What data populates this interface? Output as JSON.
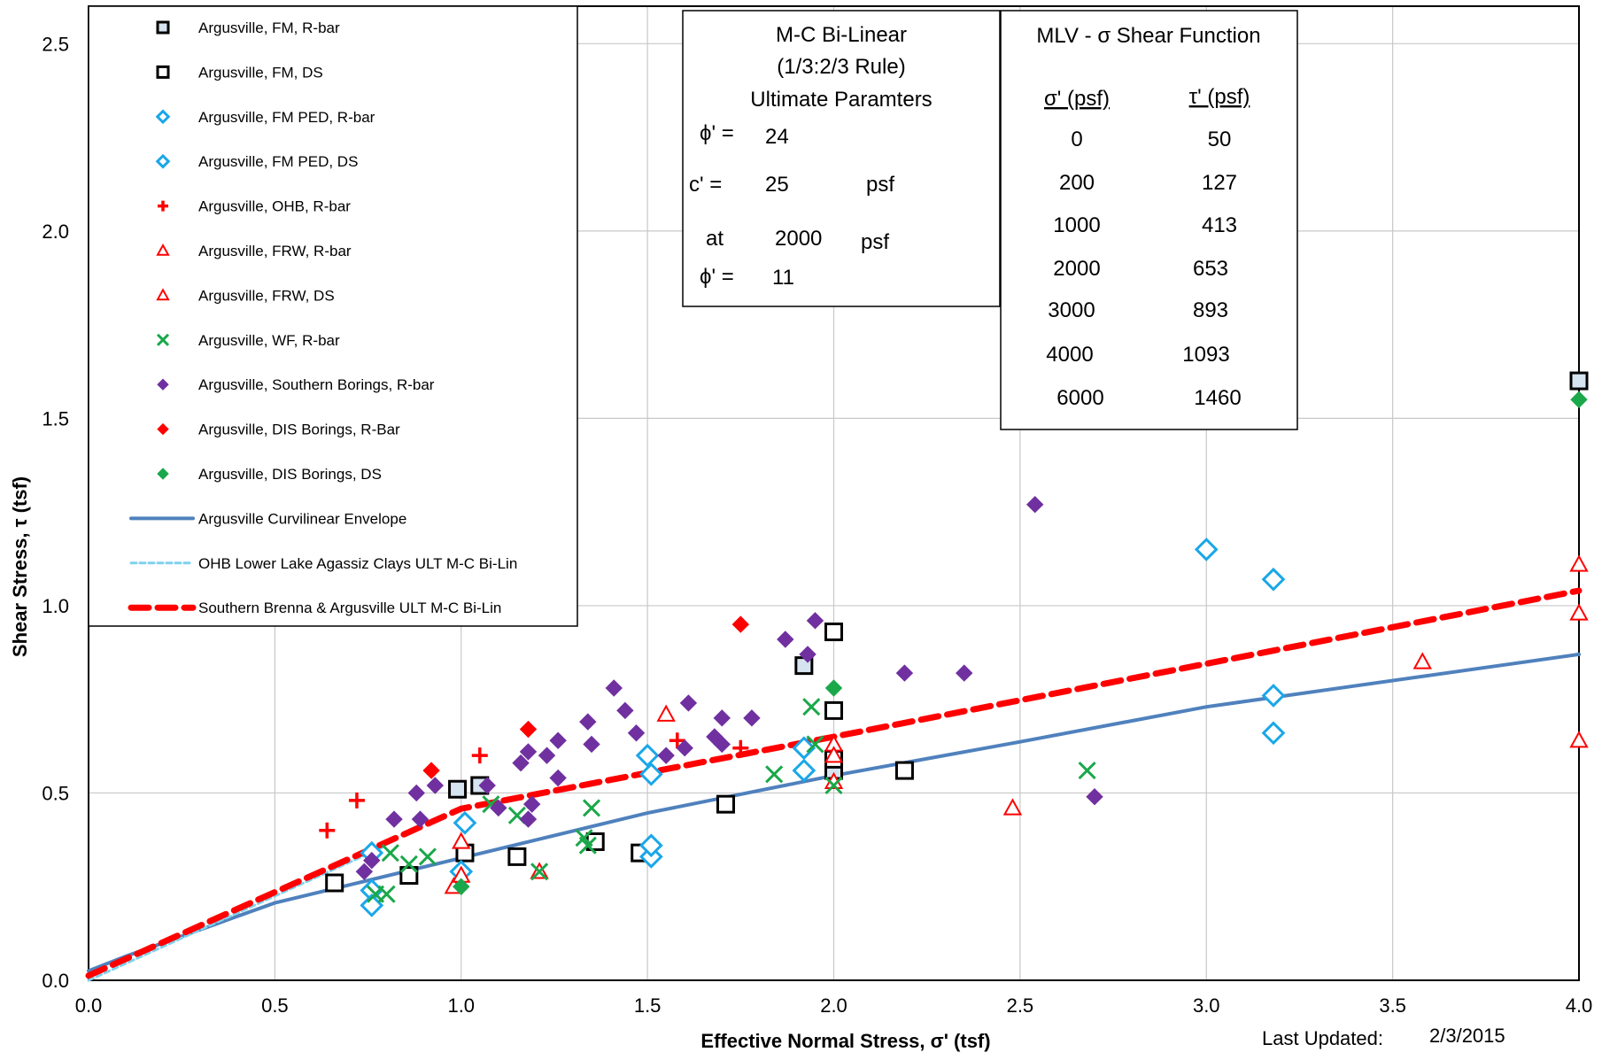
{
  "chart_data": {
    "type": "scatter",
    "title": "",
    "xlabel": "Effective Normal Stress, σ' (tsf)",
    "ylabel": "Shear Stress, τ (tsf)",
    "xlim": [
      0,
      4
    ],
    "ylim": [
      0,
      2.6
    ],
    "xticks": [
      "0.0",
      "0.5",
      "1.0",
      "1.5",
      "2.0",
      "2.5",
      "3.0",
      "3.5",
      "4.0"
    ],
    "yticks": [
      "0.0",
      "0.5",
      "1.0",
      "1.5",
      "2.0",
      "2.5"
    ],
    "grid": true,
    "legend_placement": "top-left",
    "colors": {
      "black": "#000000",
      "cyan": "#1aa7e8",
      "red": "#ff0000",
      "green": "#1aa84a",
      "purple": "#7030a0",
      "blue_line": "#4f81bd",
      "light_blue_line": "#7fd2ee",
      "red_dash": "#ff0000"
    },
    "series": [
      {
        "name": "Argusville, FM, R-bar",
        "marker": "square-light",
        "color": "#000000",
        "points": [
          [
            0.99,
            0.51
          ],
          [
            1.05,
            0.52
          ],
          [
            1.92,
            0.84
          ],
          [
            2.0,
            0.56
          ],
          [
            4.0,
            1.6
          ]
        ]
      },
      {
        "name": "Argusville, FM, DS",
        "marker": "square",
        "color": "#000000",
        "points": [
          [
            0.66,
            0.26
          ],
          [
            0.86,
            0.28
          ],
          [
            1.01,
            0.34
          ],
          [
            1.15,
            0.33
          ],
          [
            1.36,
            0.37
          ],
          [
            1.48,
            0.34
          ],
          [
            1.71,
            0.47
          ],
          [
            2.0,
            0.93
          ],
          [
            2.0,
            0.72
          ],
          [
            2.0,
            0.59
          ],
          [
            2.19,
            0.56
          ]
        ]
      },
      {
        "name": "Argusville, FM PED, R-bar",
        "marker": "diamond",
        "color": "#1aa7e8",
        "points": [
          [
            0.76,
            0.24
          ],
          [
            0.76,
            0.2
          ],
          [
            1.0,
            0.29
          ],
          [
            1.51,
            0.55
          ],
          [
            1.5,
            0.6
          ],
          [
            1.92,
            0.62
          ],
          [
            1.92,
            0.56
          ],
          [
            3.0,
            1.15
          ],
          [
            3.18,
            1.07
          ],
          [
            3.18,
            0.66
          ]
        ]
      },
      {
        "name": "Argusville, FM PED, DS",
        "marker": "diamond",
        "color": "#1aa7e8",
        "points": [
          [
            0.76,
            0.34
          ],
          [
            1.01,
            0.42
          ],
          [
            1.51,
            0.33
          ],
          [
            1.51,
            0.36
          ],
          [
            3.18,
            0.76
          ]
        ]
      },
      {
        "name": "Argusville, OHB, R-bar",
        "marker": "plus",
        "color": "#ff0000",
        "points": [
          [
            0.64,
            0.4
          ],
          [
            0.72,
            0.48
          ],
          [
            1.05,
            0.6
          ],
          [
            1.58,
            0.64
          ],
          [
            1.75,
            0.62
          ]
        ]
      },
      {
        "name": "Argusville, FRW, R-bar",
        "marker": "triangle",
        "color": "#ff0000",
        "points": [
          [
            0.98,
            0.25
          ],
          [
            1.0,
            0.37
          ],
          [
            1.0,
            0.28
          ],
          [
            1.21,
            0.29
          ],
          [
            1.55,
            0.71
          ],
          [
            2.0,
            0.63
          ],
          [
            2.0,
            0.53
          ],
          [
            2.0,
            0.6
          ],
          [
            4.0,
            1.11
          ],
          [
            4.0,
            0.98
          ],
          [
            4.0,
            0.64
          ]
        ]
      },
      {
        "name": "Argusville, FRW, DS",
        "marker": "triangle",
        "color": "#ff0000",
        "points": [
          [
            2.48,
            0.46
          ],
          [
            3.58,
            0.85
          ]
        ]
      },
      {
        "name": "Argusville, WF, R-bar",
        "marker": "x",
        "color": "#1aa84a",
        "points": [
          [
            0.77,
            0.23
          ],
          [
            0.8,
            0.23
          ],
          [
            0.81,
            0.34
          ],
          [
            0.86,
            0.31
          ],
          [
            0.91,
            0.33
          ],
          [
            1.08,
            0.47
          ],
          [
            1.15,
            0.44
          ],
          [
            1.21,
            0.29
          ],
          [
            1.33,
            0.38
          ],
          [
            1.34,
            0.36
          ],
          [
            1.35,
            0.46
          ],
          [
            1.84,
            0.55
          ],
          [
            1.94,
            0.73
          ],
          [
            1.95,
            0.63
          ],
          [
            2.0,
            0.52
          ],
          [
            2.68,
            0.56
          ]
        ]
      },
      {
        "name": "Argusville, Southern Borings, R-bar",
        "marker": "diamond-filled",
        "color": "#7030a0",
        "points": [
          [
            0.74,
            0.29
          ],
          [
            0.76,
            0.32
          ],
          [
            0.82,
            0.43
          ],
          [
            0.88,
            0.5
          ],
          [
            0.89,
            0.43
          ],
          [
            0.93,
            0.52
          ],
          [
            1.07,
            0.52
          ],
          [
            1.1,
            0.46
          ],
          [
            1.16,
            0.58
          ],
          [
            1.18,
            0.61
          ],
          [
            1.18,
            0.43
          ],
          [
            1.19,
            0.47
          ],
          [
            1.23,
            0.6
          ],
          [
            1.26,
            0.64
          ],
          [
            1.26,
            0.54
          ],
          [
            1.34,
            0.69
          ],
          [
            1.35,
            0.63
          ],
          [
            1.41,
            0.78
          ],
          [
            1.44,
            0.72
          ],
          [
            1.47,
            0.66
          ],
          [
            1.55,
            0.6
          ],
          [
            1.6,
            0.62
          ],
          [
            1.61,
            0.74
          ],
          [
            1.68,
            0.65
          ],
          [
            1.7,
            0.63
          ],
          [
            1.7,
            0.7
          ],
          [
            1.78,
            0.7
          ],
          [
            1.87,
            0.91
          ],
          [
            1.93,
            0.87
          ],
          [
            1.95,
            0.96
          ],
          [
            2.19,
            0.82
          ],
          [
            2.35,
            0.82
          ],
          [
            2.54,
            1.27
          ],
          [
            2.7,
            0.49
          ]
        ]
      },
      {
        "name": "Argusville, DIS Borings, R-Bar",
        "marker": "diamond-filled",
        "color": "#ff0000",
        "points": [
          [
            0.92,
            0.56
          ],
          [
            1.18,
            0.67
          ],
          [
            1.75,
            0.95
          ]
        ]
      },
      {
        "name": "Argusville, DIS Borings, DS",
        "marker": "diamond-filled",
        "color": "#1aa84a",
        "points": [
          [
            1.0,
            0.25
          ],
          [
            2.0,
            0.78
          ],
          [
            4.0,
            1.55
          ]
        ]
      }
    ],
    "lines": [
      {
        "name": "Argusville Curvilinear Envelope",
        "style": "solid",
        "color": "#4f81bd",
        "points": [
          [
            0,
            0.025
          ],
          [
            0.1,
            0.064
          ],
          [
            0.5,
            0.2065
          ],
          [
            1.0,
            0.3265
          ],
          [
            1.5,
            0.4465
          ],
          [
            2.0,
            0.5465
          ],
          [
            2.5,
            0.6365
          ],
          [
            3.0,
            0.73
          ],
          [
            4.0,
            0.87
          ]
        ]
      },
      {
        "name": "OHB Lower Lake Agassiz Clays ULT M-C Bi-Lin",
        "style": "dotted",
        "color": "#7fd2ee",
        "points": [
          [
            0,
            0.0
          ],
          [
            0.8,
            0.36
          ]
        ]
      },
      {
        "name": "Southern Brenna & Argusville ULT M-C Bi-Lin",
        "style": "dashed",
        "color": "#ff0000",
        "points": [
          [
            0,
            0.0125
          ],
          [
            1.0,
            0.458
          ],
          [
            2.0,
            0.65
          ],
          [
            3.0,
            0.845
          ],
          [
            4.0,
            1.04
          ]
        ]
      }
    ]
  },
  "legend": {
    "items": [
      "Argusville, FM, R-bar",
      "Argusville, FM, DS",
      "Argusville, FM PED, R-bar",
      "Argusville, FM PED, DS",
      "Argusville, OHB, R-bar",
      "Argusville, FRW, R-bar",
      "Argusville, FRW, DS",
      "Argusville, WF, R-bar",
      "Argusville, Southern Borings, R-bar",
      "Argusville, DIS Borings, R-Bar",
      "Argusville, DIS Borings, DS",
      "Argusville Curvilinear Envelope",
      "OHB Lower Lake Agassiz Clays ULT M-C Bi-Lin",
      "Southern Brenna & Argusville ULT M-C Bi-Lin"
    ]
  },
  "mc_box": {
    "line1": "M-C  Bi-Linear",
    "line2": "(1/3:2/3 Rule)",
    "line3": "Ultimate Paramters",
    "phi_label": "ϕ' =",
    "phi_value": "24",
    "c_label": "c' =",
    "c_value": "25",
    "c_unit": "psf",
    "at_label": "at",
    "at_value": "2000",
    "at_unit": "psf",
    "phi2_label": "ϕ' =",
    "phi2_value": "11"
  },
  "mlv_box": {
    "title": "MLV - σ Shear Function",
    "col1": "σ' (psf)",
    "col2": "τ' (psf)",
    "rows": [
      [
        "0",
        "50"
      ],
      [
        "200",
        "127"
      ],
      [
        "1000",
        "413"
      ],
      [
        "2000",
        "653"
      ],
      [
        "3000",
        "893"
      ],
      [
        "4000",
        "1093"
      ],
      [
        "6000",
        "1460"
      ]
    ]
  },
  "footer": {
    "last_updated_label": "Last Updated:",
    "last_updated_value": "2/3/2015"
  }
}
